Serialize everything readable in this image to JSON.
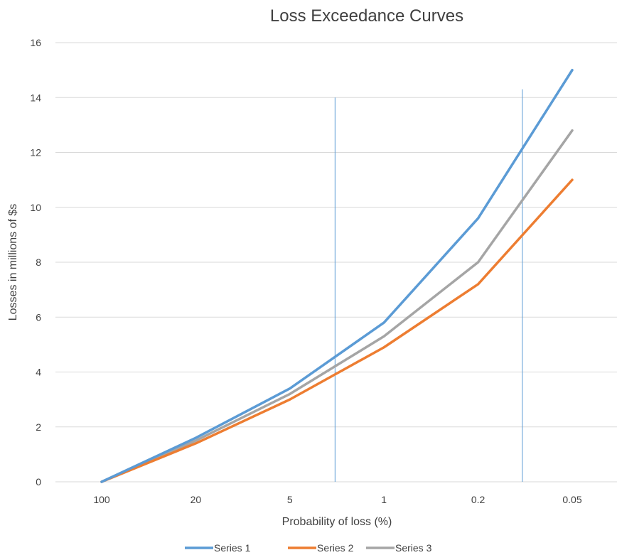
{
  "chart_data": {
    "type": "line",
    "title": "Loss Exceedance Curves",
    "xlabel": "Probability of loss (%)",
    "ylabel": "Losses in millions of $s",
    "categories": [
      "100",
      "20",
      "5",
      "1",
      "0.2",
      "0.05"
    ],
    "ylim": [
      0,
      16
    ],
    "yticks": [
      0,
      2,
      4,
      6,
      8,
      10,
      12,
      14,
      16
    ],
    "grid": true,
    "legend_position": "bottom",
    "series": [
      {
        "name": "Series 1",
        "color": "#5b9bd5",
        "values": [
          0,
          1.6,
          3.4,
          5.8,
          9.6,
          15.0
        ]
      },
      {
        "name": "Series 2",
        "color": "#ed7d31",
        "values": [
          0,
          1.4,
          3.0,
          4.9,
          7.2,
          11.0
        ]
      },
      {
        "name": "Series 3",
        "color": "#a5a5a5",
        "values": [
          0,
          1.5,
          3.2,
          5.3,
          8.0,
          12.8
        ]
      }
    ],
    "reference_lines": [
      {
        "x_category_index": 2.48,
        "y_from": 0,
        "y_to": 14.0,
        "color": "#5b9bd5"
      },
      {
        "x_category_index": 4.47,
        "y_from": 0,
        "y_to": 14.3,
        "color": "#5b9bd5"
      }
    ]
  }
}
